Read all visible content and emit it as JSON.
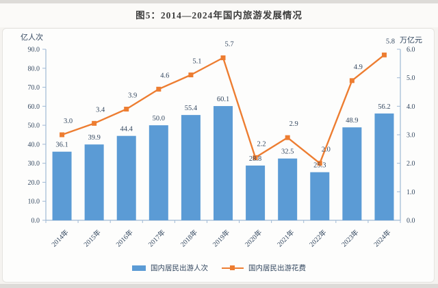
{
  "title": "图5：2014—2024年国内旅游发展情况",
  "colors": {
    "bar": "#5b9bd5",
    "line": "#ed7d31",
    "marker": "#ed7d31",
    "axis": "#9fb8d4",
    "label": "#33475f",
    "tick_label": "#33475f",
    "title_text": "#3d3d3d"
  },
  "chart_data": {
    "type": "bar",
    "subtype": "bar-line-combo",
    "title": "图5：2014—2024年国内旅游发展情况",
    "categories": [
      "2014年",
      "2015年",
      "2016年",
      "2017年",
      "2018年",
      "2019年",
      "2020年",
      "2021年",
      "2022年",
      "2023年",
      "2024年"
    ],
    "series": [
      {
        "name": "国内居民出游人次",
        "type": "bar",
        "axis": "left",
        "unit": "亿人次",
        "color": "#5b9bd5",
        "values": [
          36.1,
          39.9,
          44.4,
          50.0,
          55.4,
          60.1,
          28.8,
          32.5,
          25.3,
          48.9,
          56.2
        ]
      },
      {
        "name": "国内居民出游花费",
        "type": "line",
        "axis": "right",
        "unit": "万亿元",
        "color": "#ed7d31",
        "values": [
          3.0,
          3.4,
          3.9,
          4.6,
          5.1,
          5.7,
          2.2,
          2.9,
          2.0,
          4.9,
          5.8
        ]
      }
    ],
    "left_axis": {
      "title": "亿人次",
      "min": 0,
      "max": 90,
      "step": 10,
      "decimals": 1
    },
    "right_axis": {
      "title": "万亿元",
      "min": 0,
      "max": 6,
      "step": 1,
      "decimals": 1
    },
    "grid": false,
    "data_labels": true,
    "legend_position": "bottom",
    "x_label_rotation": -45
  }
}
